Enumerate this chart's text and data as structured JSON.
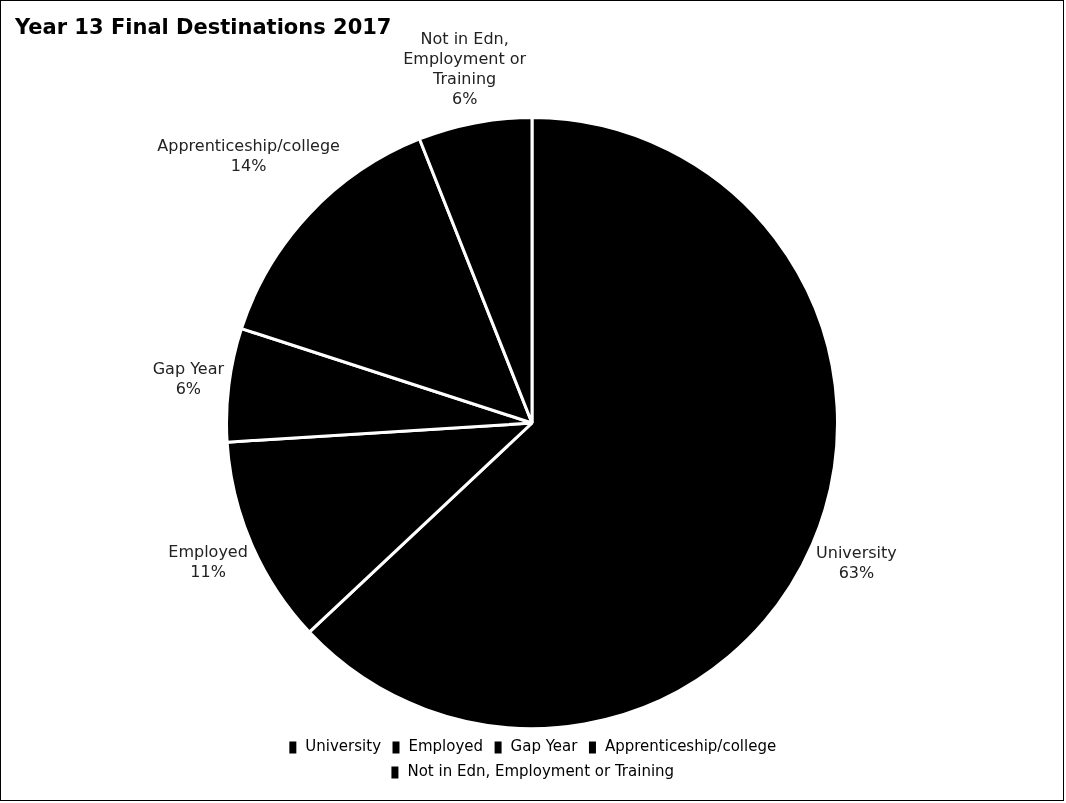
{
  "chart_data": {
    "type": "pie",
    "title": "Year 13 Final Destinations 2017",
    "categories": [
      "University",
      "Employed",
      "Gap Year",
      "Apprenticeship/college",
      "Not in Edn, Employment or Training"
    ],
    "values": [
      63,
      11,
      6,
      14,
      6
    ],
    "colors": [
      "#000000",
      "#000000",
      "#000000",
      "#000000",
      "#000000"
    ],
    "value_labels": [
      "63%",
      "11%",
      "6%",
      "14%",
      "6%"
    ],
    "legend": "bottom"
  }
}
